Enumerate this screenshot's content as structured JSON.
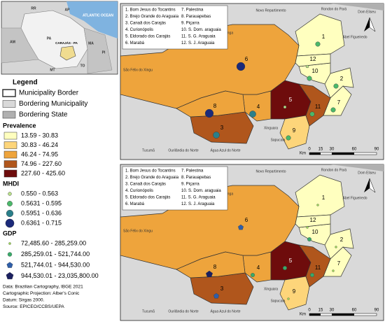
{
  "inset": {
    "labels": [
      "ATLANTIC OCEAN",
      "RR",
      "AP",
      "AM",
      "PA",
      "MA",
      "CARAJÁS - PA",
      "MT",
      "TO",
      "PI"
    ]
  },
  "legend": {
    "title": "Legend",
    "layers": [
      {
        "label": "Municipality Border",
        "color": "#ffffff"
      },
      {
        "label": "Bordering Municipality",
        "color": "#d9d9d9"
      },
      {
        "label": "Bordering State",
        "color": "#b0b0b0"
      }
    ],
    "prevalence": {
      "title": "Prevalence",
      "classes": [
        {
          "label": "13.59 - 30.83",
          "color": "#ffffbf"
        },
        {
          "label": "30.83 - 46.24",
          "color": "#fdd57a"
        },
        {
          "label": "46.24 - 74.95",
          "color": "#eea43c"
        },
        {
          "label": "74.96 - 227.60",
          "color": "#b0561c"
        },
        {
          "label": "227.60 - 425.60",
          "color": "#6e0c0c"
        }
      ]
    },
    "mhdi": {
      "title": "MHDI",
      "classes": [
        {
          "label": "0.550 - 0.563",
          "color": "#b8e08a"
        },
        {
          "label": "0.5631 - 0.595",
          "color": "#4bb86a"
        },
        {
          "label": "0.5951 - 0.636",
          "color": "#2a7f8a"
        },
        {
          "label": "0.6361 - 0.715",
          "color": "#1b2a7a"
        }
      ]
    },
    "gdp": {
      "title": "GDP",
      "classes": [
        {
          "label": "72,485.60 - 285,259.00",
          "color": "#9bd65a"
        },
        {
          "label": "285,259.01 - 521,744.00",
          "color": "#3aa96a"
        },
        {
          "label": "521,744.01 - 944,530.00",
          "color": "#2f5ea8"
        },
        {
          "label": "944,530.01 - 23,035,800.00",
          "color": "#1b2060"
        }
      ]
    }
  },
  "notes": [
    "Data: Brazilian Cartography, IBGE 2021",
    "Cartographic Projection: Alber's Conic",
    "Datum: Sirgas 2000.",
    "Source: EPICEO/CCBS/UEPA"
  ],
  "maps": {
    "municipalities": [
      "1. Bom Jesus do Tocantins",
      "2. Brejo Grande do Araguaia",
      "3. Canaã dos Carajás",
      "4. Curionópolis",
      "5. Eldorado dos Carajás",
      "6. Marabá",
      "7. Palestina",
      "8. Parauapebas",
      "9. Piçarra",
      "10. S. Dom. araguaia",
      "11. S. G. Araguaia",
      "12. S. J. Araguaia"
    ],
    "numbers": [
      "1",
      "2",
      "3",
      "4",
      "5",
      "6",
      "7",
      "8",
      "9",
      "10",
      "11",
      "12"
    ],
    "places": [
      "Novo Repartimento",
      "Rondon do Pará",
      "Dom Eliseu",
      "Abel Figueiredo",
      "Itupiranga",
      "São Félix do Xingu",
      "Xinguara",
      "Sapucaia",
      "Tucumã",
      "Ourilândia do Norte",
      "Água Azul do Norte"
    ],
    "scale": {
      "unit": "Km",
      "ticks": [
        "0",
        "15",
        "30",
        "60",
        "90"
      ]
    }
  }
}
